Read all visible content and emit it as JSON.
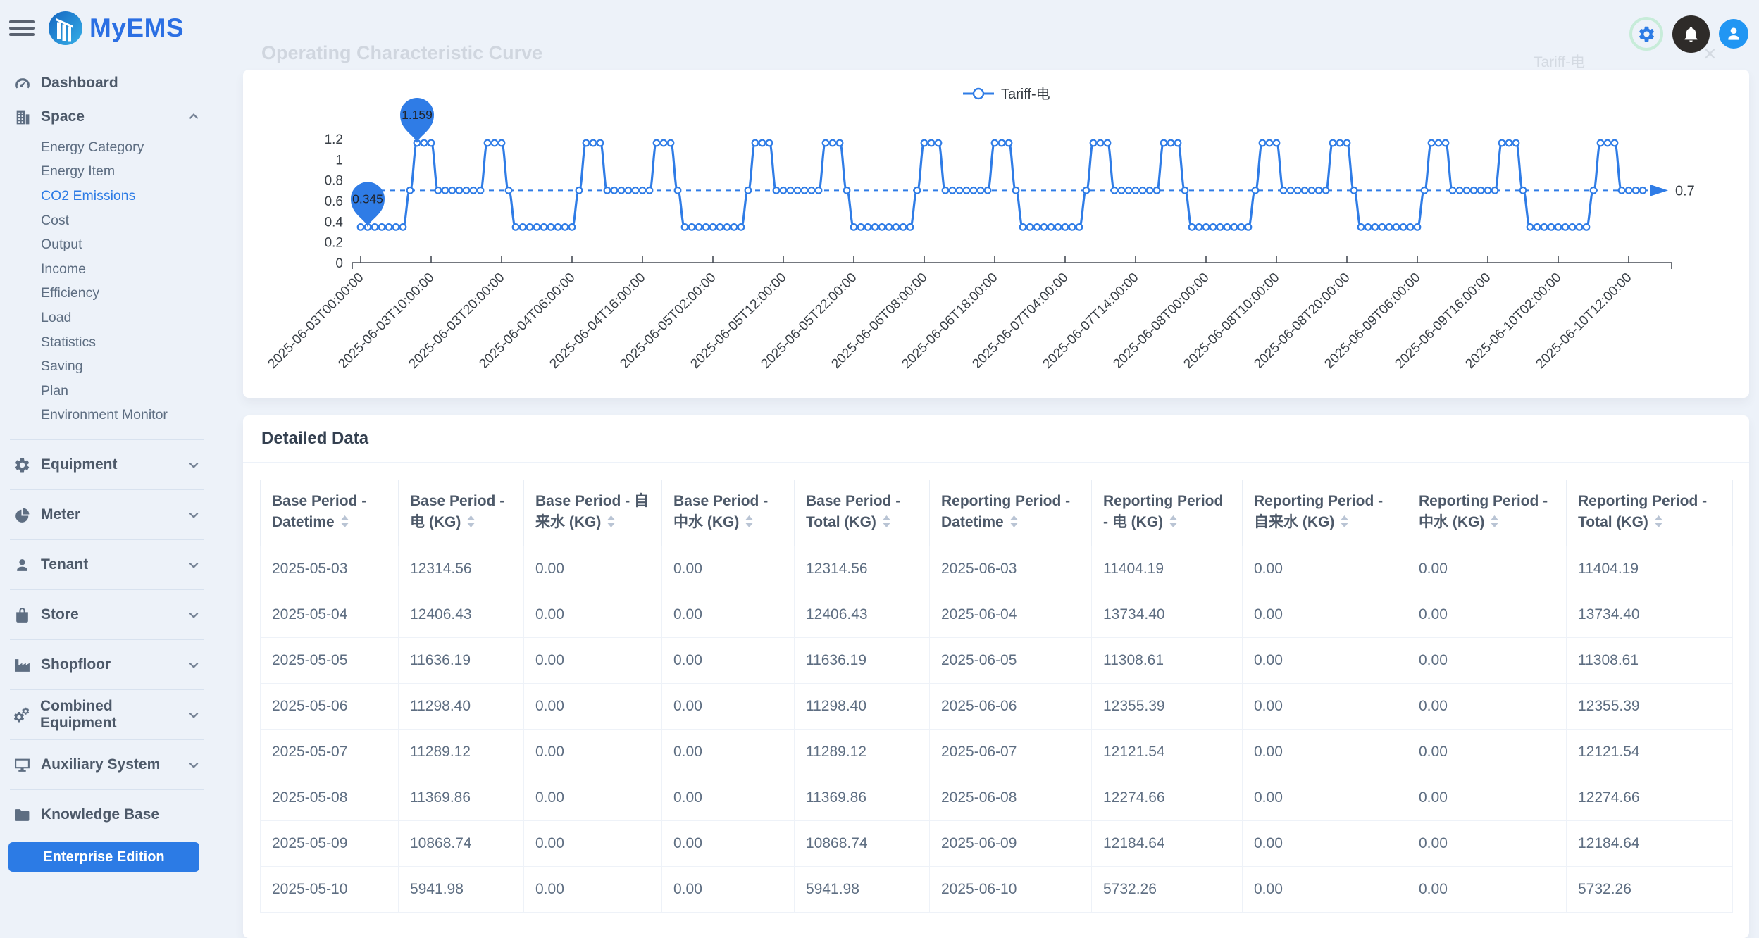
{
  "app": {
    "logo_text": "MyEMS"
  },
  "topbar": {
    "icons": [
      "settings",
      "notifications",
      "user"
    ]
  },
  "ghost": {
    "title": "Operating Characteristic Curve",
    "legend_label": "Tariff-电",
    "close_glyph": "×"
  },
  "sidebar": {
    "items": [
      {
        "label": "Dashboard",
        "icon": "gauge"
      },
      {
        "label": "Space",
        "icon": "building",
        "chevron": "up",
        "active_child": "CO2 Emissions",
        "children": [
          "Energy Category",
          "Energy Item",
          "CO2 Emissions",
          "Cost",
          "Output",
          "Income",
          "Efficiency",
          "Load",
          "Statistics",
          "Saving",
          "Plan",
          "Environment Monitor"
        ]
      },
      {
        "label": "Equipment",
        "icon": "gear",
        "chevron": "down",
        "divider_before": true
      },
      {
        "label": "Meter",
        "icon": "pie",
        "chevron": "down",
        "divider_before": true
      },
      {
        "label": "Tenant",
        "icon": "user",
        "chevron": "down",
        "divider_before": true
      },
      {
        "label": "Store",
        "icon": "bag",
        "chevron": "down",
        "divider_before": true
      },
      {
        "label": "Shopfloor",
        "icon": "factory",
        "chevron": "down",
        "divider_before": true
      },
      {
        "label": "Combined Equipment",
        "icon": "gears",
        "chevron": "down",
        "divider_before": true
      },
      {
        "label": "Auxiliary System",
        "icon": "monitor",
        "chevron": "down",
        "divider_before": true
      },
      {
        "label": "Knowledge Base",
        "icon": "folder",
        "divider_before": true
      }
    ],
    "footer_button": "Enterprise Edition"
  },
  "chart_data": {
    "type": "line",
    "title": "Operating Characteristic Curve",
    "legend": {
      "position": "top-center",
      "entries": [
        "Tariff-电"
      ]
    },
    "x_start": "2025-06-03T00:00:00",
    "x_interval_hours": 1,
    "x_tick_every": 10,
    "x_tick_labels": [
      "2025-06-03T00:00:00",
      "2025-06-03T10:00:00",
      "2025-06-03T20:00:00",
      "2025-06-04T06:00:00",
      "2025-06-04T16:00:00",
      "2025-06-05T02:00:00",
      "2025-06-05T12:00:00",
      "2025-06-05T22:00:00",
      "2025-06-06T08:00:00",
      "2025-06-06T18:00:00",
      "2025-06-07T04:00:00",
      "2025-06-07T14:00:00",
      "2025-06-08T00:00:00",
      "2025-06-08T10:00:00",
      "2025-06-08T20:00:00",
      "2025-06-09T06:00:00",
      "2025-06-09T16:00:00",
      "2025-06-10T02:00:00",
      "2025-06-10T12:00:00"
    ],
    "ylim": [
      0,
      1.2
    ],
    "y_ticks": [
      0,
      0.2,
      0.4,
      0.6,
      0.8,
      1,
      1.2
    ],
    "grid": false,
    "avg_line": {
      "value": 0.7,
      "label": "0.7",
      "style": "dashed"
    },
    "max_point": {
      "index": 8,
      "value": 1.159,
      "label": "1.159"
    },
    "min_point": {
      "index": 1,
      "value": 0.345,
      "label": "0.345"
    },
    "series": [
      {
        "name": "Tariff-电",
        "color": "#2f7ce6",
        "smooth": true,
        "values": [
          0.345,
          0.345,
          0.345,
          0.345,
          0.345,
          0.345,
          0.345,
          0.7,
          1.159,
          1.159,
          1.159,
          0.7,
          0.7,
          0.7,
          0.7,
          0.7,
          0.7,
          0.7,
          1.159,
          1.159,
          1.159,
          0.7,
          0.345,
          0.345,
          0.345,
          0.345,
          0.345,
          0.345,
          0.345,
          0.345,
          0.345,
          0.7,
          1.159,
          1.159,
          1.159,
          0.7,
          0.7,
          0.7,
          0.7,
          0.7,
          0.7,
          0.7,
          1.159,
          1.159,
          1.159,
          0.7,
          0.345,
          0.345,
          0.345,
          0.345,
          0.345,
          0.345,
          0.345,
          0.345,
          0.345,
          0.7,
          1.159,
          1.159,
          1.159,
          0.7,
          0.7,
          0.7,
          0.7,
          0.7,
          0.7,
          0.7,
          1.159,
          1.159,
          1.159,
          0.7,
          0.345,
          0.345,
          0.345,
          0.345,
          0.345,
          0.345,
          0.345,
          0.345,
          0.345,
          0.7,
          1.159,
          1.159,
          1.159,
          0.7,
          0.7,
          0.7,
          0.7,
          0.7,
          0.7,
          0.7,
          1.159,
          1.159,
          1.159,
          0.7,
          0.345,
          0.345,
          0.345,
          0.345,
          0.345,
          0.345,
          0.345,
          0.345,
          0.345,
          0.7,
          1.159,
          1.159,
          1.159,
          0.7,
          0.7,
          0.7,
          0.7,
          0.7,
          0.7,
          0.7,
          1.159,
          1.159,
          1.159,
          0.7,
          0.345,
          0.345,
          0.345,
          0.345,
          0.345,
          0.345,
          0.345,
          0.345,
          0.345,
          0.7,
          1.159,
          1.159,
          1.159,
          0.7,
          0.7,
          0.7,
          0.7,
          0.7,
          0.7,
          0.7,
          1.159,
          1.159,
          1.159,
          0.7,
          0.345,
          0.345,
          0.345,
          0.345,
          0.345,
          0.345,
          0.345,
          0.345,
          0.345,
          0.7,
          1.159,
          1.159,
          1.159,
          0.7,
          0.7,
          0.7,
          0.7,
          0.7,
          0.7,
          0.7,
          1.159,
          1.159,
          1.159,
          0.7,
          0.345,
          0.345,
          0.345,
          0.345,
          0.345,
          0.345,
          0.345,
          0.345,
          0.345,
          0.7,
          1.159,
          1.159,
          1.159,
          0.7,
          0.7,
          0.7,
          0.7
        ]
      }
    ]
  },
  "table": {
    "title": "Detailed Data",
    "sortable": true,
    "columns": [
      "Base Period - Datetime",
      "Base Period - 电 (KG)",
      "Base Period - 自来水 (KG)",
      "Base Period - 中水 (KG)",
      "Base Period - Total (KG)",
      "Reporting Period - Datetime",
      "Reporting Period - 电 (KG)",
      "Reporting Period - 自来水 (KG)",
      "Reporting Period - 中水 (KG)",
      "Reporting Period - Total (KG)"
    ],
    "rows": [
      [
        "2025-05-03",
        "12314.56",
        "0.00",
        "0.00",
        "12314.56",
        "2025-06-03",
        "11404.19",
        "0.00",
        "0.00",
        "11404.19"
      ],
      [
        "2025-05-04",
        "12406.43",
        "0.00",
        "0.00",
        "12406.43",
        "2025-06-04",
        "13734.40",
        "0.00",
        "0.00",
        "13734.40"
      ],
      [
        "2025-05-05",
        "11636.19",
        "0.00",
        "0.00",
        "11636.19",
        "2025-06-05",
        "11308.61",
        "0.00",
        "0.00",
        "11308.61"
      ],
      [
        "2025-05-06",
        "11298.40",
        "0.00",
        "0.00",
        "11298.40",
        "2025-06-06",
        "12355.39",
        "0.00",
        "0.00",
        "12355.39"
      ],
      [
        "2025-05-07",
        "11289.12",
        "0.00",
        "0.00",
        "11289.12",
        "2025-06-07",
        "12121.54",
        "0.00",
        "0.00",
        "12121.54"
      ],
      [
        "2025-05-08",
        "11369.86",
        "0.00",
        "0.00",
        "11369.86",
        "2025-06-08",
        "12274.66",
        "0.00",
        "0.00",
        "12274.66"
      ],
      [
        "2025-05-09",
        "10868.74",
        "0.00",
        "0.00",
        "10868.74",
        "2025-06-09",
        "12184.64",
        "0.00",
        "0.00",
        "12184.64"
      ],
      [
        "2025-05-10",
        "5941.98",
        "0.00",
        "0.00",
        "5941.98",
        "2025-06-10",
        "5732.26",
        "0.00",
        "0.00",
        "5732.26"
      ]
    ]
  },
  "colors": {
    "accent": "#2c7be5",
    "background": "#edf2f9",
    "card": "#ffffff",
    "chart_line": "#2f7ce6",
    "sidebar_text": "#5e6e82",
    "active_item": "#2c7be5",
    "avatar_bg": "#2196f3",
    "bell_bg": "#2e2b29",
    "gear_ring": "#c7ecd9"
  }
}
